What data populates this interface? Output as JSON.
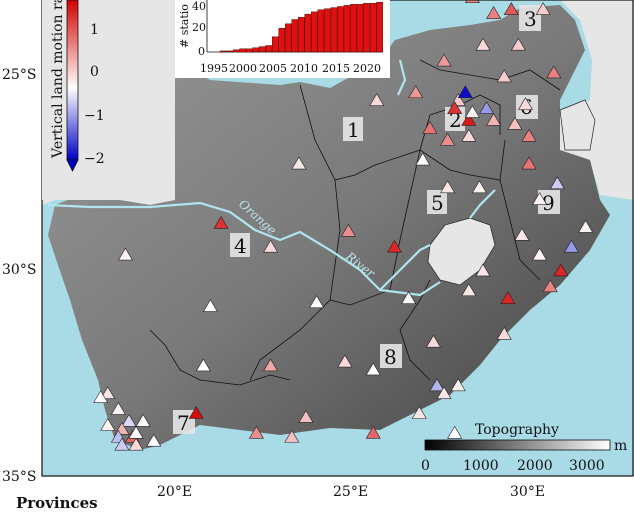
{
  "map": {
    "y_ticks": [
      "25°S",
      "30°S",
      "35°S"
    ],
    "x_ticks": [
      "20°E",
      "25°E",
      "30°E"
    ],
    "rivers": {
      "label_1": "Orange",
      "label_2": "River"
    },
    "provinces": [
      "1",
      "2",
      "3",
      "4",
      "5",
      "6",
      "7",
      "8",
      "9"
    ],
    "bottom_title": "Provinces",
    "stations": [
      {
        "lon": 21.3,
        "lat": -28.7,
        "v": 1.6
      },
      {
        "lon": 22.7,
        "lat": -29.3,
        "v": 0.3
      },
      {
        "lon": 23.5,
        "lat": -27.2,
        "v": 0.2
      },
      {
        "lon": 24.9,
        "lat": -28.9,
        "v": 0.9
      },
      {
        "lon": 26.2,
        "lat": -29.3,
        "v": 1.7
      },
      {
        "lon": 26.6,
        "lat": -30.6,
        "v": 1.8
      },
      {
        "lon": 27.0,
        "lat": -27.1,
        "v": 0.0
      },
      {
        "lon": 27.2,
        "lat": -26.3,
        "v": 1.1
      },
      {
        "lon": 27.7,
        "lat": -27.8,
        "v": 0.2
      },
      {
        "lon": 27.7,
        "lat": -26.6,
        "v": 0.9
      },
      {
        "lon": 28.0,
        "lat": -25.6,
        "v": 0.4
      },
      {
        "lon": 28.2,
        "lat": -25.4,
        "v": -1.9
      },
      {
        "lon": 28.3,
        "lat": -26.1,
        "v": 1.8
      },
      {
        "lon": 27.9,
        "lat": -25.8,
        "v": 1.6
      },
      {
        "lon": 28.4,
        "lat": -25.9,
        "v": 0.1
      },
      {
        "lon": 28.3,
        "lat": -26.5,
        "v": 0.3
      },
      {
        "lon": 28.6,
        "lat": -27.8,
        "v": 0.1
      },
      {
        "lon": 28.8,
        "lat": -25.8,
        "v": -0.8
      },
      {
        "lon": 29.3,
        "lat": -25.0,
        "v": 0.4
      },
      {
        "lon": 29.0,
        "lat": -26.1,
        "v": 0.6
      },
      {
        "lon": 29.6,
        "lat": -26.2,
        "v": 0.5
      },
      {
        "lon": 30.0,
        "lat": -26.5,
        "v": 1.0
      },
      {
        "lon": 29.9,
        "lat": -25.7,
        "v": 0.3
      },
      {
        "lon": 30.0,
        "lat": -27.2,
        "v": 1.1
      },
      {
        "lon": 30.3,
        "lat": -28.1,
        "v": 0.1
      },
      {
        "lon": 29.8,
        "lat": -29.0,
        "v": 0.2
      },
      {
        "lon": 30.3,
        "lat": -29.5,
        "v": 0.1
      },
      {
        "lon": 30.9,
        "lat": -29.9,
        "v": 1.7
      },
      {
        "lon": 30.6,
        "lat": -30.3,
        "v": 1.0
      },
      {
        "lon": 31.2,
        "lat": -29.3,
        "v": -0.8
      },
      {
        "lon": 30.8,
        "lat": -27.7,
        "v": -0.4
      },
      {
        "lon": 31.6,
        "lat": -28.8,
        "v": 0.1
      },
      {
        "lon": 29.0,
        "lat": -23.4,
        "v": 1.0
      },
      {
        "lon": 28.4,
        "lat": -23.0,
        "v": 0.9
      },
      {
        "lon": 29.5,
        "lat": -23.3,
        "v": 1.3
      },
      {
        "lon": 30.4,
        "lat": -23.3,
        "v": 0.4
      },
      {
        "lon": 29.7,
        "lat": -24.2,
        "v": 0.4
      },
      {
        "lon": 28.7,
        "lat": -24.2,
        "v": 0.3
      },
      {
        "lon": 30.7,
        "lat": -24.9,
        "v": 1.0
      },
      {
        "lon": 27.6,
        "lat": -24.6,
        "v": 0.8
      },
      {
        "lon": 26.8,
        "lat": -25.4,
        "v": 0.8
      },
      {
        "lon": 25.7,
        "lat": -25.6,
        "v": 0.3
      },
      {
        "lon": 28.7,
        "lat": -29.9,
        "v": 0.2
      },
      {
        "lon": 28.3,
        "lat": -30.4,
        "v": 0.2
      },
      {
        "lon": 29.4,
        "lat": -30.6,
        "v": 1.7
      },
      {
        "lon": 29.3,
        "lat": -31.5,
        "v": 0.3
      },
      {
        "lon": 27.3,
        "lat": -31.7,
        "v": 0.3
      },
      {
        "lon": 27.4,
        "lat": -32.8,
        "v": -0.6
      },
      {
        "lon": 28.0,
        "lat": -32.8,
        "v": 0.1
      },
      {
        "lon": 27.6,
        "lat": -33.0,
        "v": 0.2
      },
      {
        "lon": 26.9,
        "lat": -33.5,
        "v": 0.2
      },
      {
        "lon": 26.6,
        "lat": -30.6,
        "v": 0.0
      },
      {
        "lon": 25.6,
        "lat": -32.4,
        "v": 0.0
      },
      {
        "lon": 24.8,
        "lat": -32.2,
        "v": 0.3
      },
      {
        "lon": 24.0,
        "lat": -30.7,
        "v": 0.0
      },
      {
        "lon": 22.7,
        "lat": -32.3,
        "v": 0.7
      },
      {
        "lon": 21.0,
        "lat": -30.8,
        "v": 0.0
      },
      {
        "lon": 20.8,
        "lat": -32.3,
        "v": 0.0
      },
      {
        "lon": 18.6,
        "lat": -29.5,
        "v": 0.1
      },
      {
        "lon": 20.6,
        "lat": -33.5,
        "v": 1.9
      },
      {
        "lon": 23.7,
        "lat": -33.6,
        "v": 0.5
      },
      {
        "lon": 25.6,
        "lat": -34.0,
        "v": 1.2
      },
      {
        "lon": 22.3,
        "lat": -34.0,
        "v": 0.9
      },
      {
        "lon": 23.3,
        "lat": -34.1,
        "v": 0.5
      },
      {
        "lon": 18.1,
        "lat": -33.0,
        "v": 0.2
      },
      {
        "lon": 18.4,
        "lat": -33.4,
        "v": 0.1
      },
      {
        "lon": 18.7,
        "lat": -33.7,
        "v": -0.3
      },
      {
        "lon": 18.5,
        "lat": -33.9,
        "v": 0.6
      },
      {
        "lon": 18.8,
        "lat": -34.1,
        "v": 1.2
      },
      {
        "lon": 18.4,
        "lat": -34.1,
        "v": -0.5
      },
      {
        "lon": 19.1,
        "lat": -33.7,
        "v": 0.0
      },
      {
        "lon": 19.4,
        "lat": -34.2,
        "v": 0.0
      },
      {
        "lon": 18.9,
        "lat": -34.3,
        "v": 0.3
      },
      {
        "lon": 18.5,
        "lat": -34.3,
        "v": -0.4
      },
      {
        "lon": 18.1,
        "lat": -33.8,
        "v": 0.1
      },
      {
        "lon": 17.9,
        "lat": -33.1,
        "v": 0.0
      },
      {
        "lon": 18.9,
        "lat": -34.0,
        "v": 0.0
      },
      {
        "lon": 27.9,
        "lat": -34.0,
        "v": 0.0
      },
      {
        "lon": 31.0,
        "lat": -22.9,
        "v": 0.3
      }
    ]
  },
  "colorbar": {
    "label": "Vertical land motion ra",
    "ticks": [
      "1",
      "0",
      "−1",
      "−2"
    ],
    "colors": {
      "top": "#d40000",
      "mid": "#ffffff",
      "bottom": "#0000c8"
    }
  },
  "inset": {
    "ylabel": "# statio",
    "y_ticks": [
      "40",
      "20",
      "0"
    ],
    "x_ticks": [
      "1995",
      "2000",
      "2005",
      "2010",
      "2015",
      "2020"
    ],
    "bar_color": "#e01010"
  },
  "topo_bar": {
    "title": "Topography",
    "unit": "m",
    "ticks": [
      "0",
      "1000",
      "2000",
      "3000"
    ]
  },
  "chart_data": {
    "type": "bar",
    "ylabel": "# statio",
    "ylim": [
      0,
      48
    ],
    "categories": [
      1995,
      1996,
      1997,
      1998,
      1999,
      2000,
      2001,
      2002,
      2003,
      2004,
      2005,
      2006,
      2007,
      2008,
      2009,
      2010,
      2011,
      2012,
      2013,
      2014,
      2015,
      2016,
      2017,
      2018,
      2019,
      2020,
      2021
    ],
    "values": [
      0,
      0,
      1,
      1,
      2,
      3,
      3,
      4,
      5,
      6,
      14,
      22,
      26,
      30,
      32,
      35,
      37,
      39,
      40,
      41,
      42,
      43,
      44,
      44,
      45,
      45,
      46
    ]
  }
}
